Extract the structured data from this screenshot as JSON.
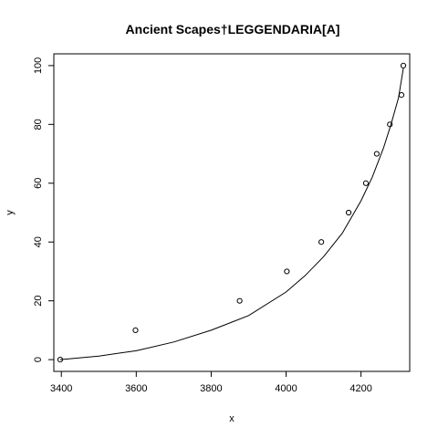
{
  "chart_data": {
    "type": "scatter",
    "title": "Ancient Scapes†LEGGENDARIA[A]",
    "xlabel": "x",
    "ylabel": "y",
    "xlim": [
      3380,
      4330
    ],
    "ylim": [
      -4,
      104
    ],
    "grid": false,
    "x_ticks": [
      3400,
      3600,
      3800,
      4000,
      4200
    ],
    "y_ticks": [
      0,
      20,
      40,
      60,
      80,
      100
    ],
    "points": [
      {
        "x": 3397,
        "y": 0
      },
      {
        "x": 3598,
        "y": 10
      },
      {
        "x": 3876,
        "y": 20
      },
      {
        "x": 4002,
        "y": 30
      },
      {
        "x": 4094,
        "y": 40
      },
      {
        "x": 4167,
        "y": 50
      },
      {
        "x": 4213,
        "y": 60
      },
      {
        "x": 4242,
        "y": 70
      },
      {
        "x": 4277,
        "y": 80
      },
      {
        "x": 4308,
        "y": 90
      },
      {
        "x": 4313,
        "y": 100
      }
    ],
    "fit_curve": {
      "x": [
        3397,
        3500,
        3600,
        3700,
        3800,
        3900,
        4000,
        4050,
        4100,
        4150,
        4200,
        4230,
        4260,
        4280,
        4300,
        4313
      ],
      "y": [
        0,
        1.2,
        3,
        6,
        10,
        15,
        23,
        28.5,
        35,
        43,
        54,
        62,
        72,
        80,
        89,
        99
      ]
    }
  }
}
